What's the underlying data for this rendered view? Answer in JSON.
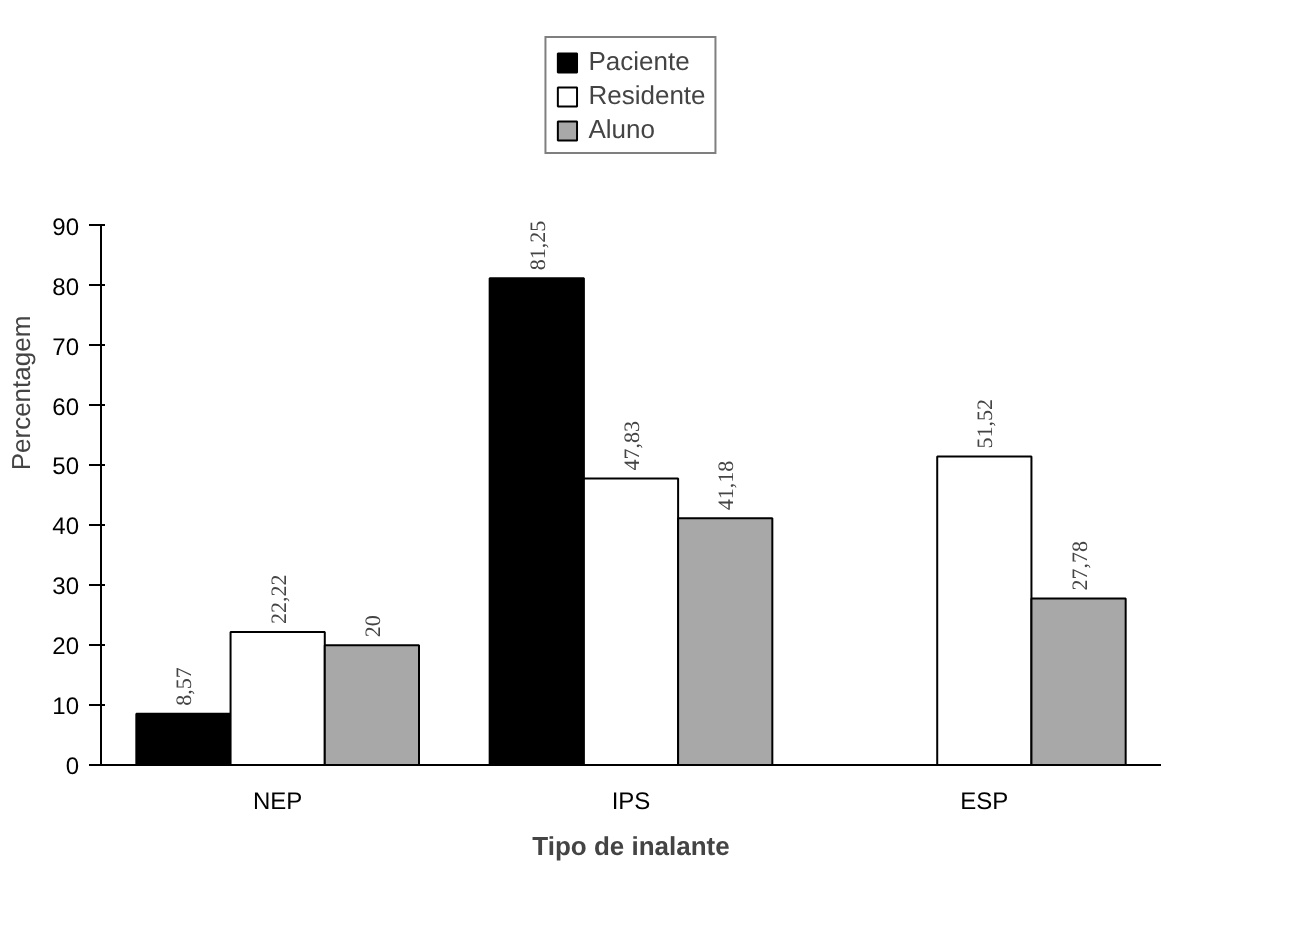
{
  "chart_data": {
    "type": "bar",
    "xlabel": "Tipo de inalante",
    "ylabel": "Percentagem",
    "categories": [
      "NEP",
      "IPS",
      "ESP"
    ],
    "series": [
      {
        "name": "Paciente",
        "color": "#000000",
        "values": [
          8.57,
          81.25,
          null
        ],
        "value_labels": [
          "8,57",
          "81,25",
          null
        ]
      },
      {
        "name": "Residente",
        "color": "#ffffff",
        "values": [
          22.22,
          47.83,
          51.52
        ],
        "value_labels": [
          "22,22",
          "47,83",
          "51,52"
        ]
      },
      {
        "name": "Aluno",
        "color": "#a8a8a8",
        "values": [
          20,
          41.18,
          27.78
        ],
        "value_labels": [
          "20",
          "41,18",
          "27,78"
        ]
      }
    ],
    "ylim": [
      0,
      90
    ],
    "yticks": [
      0,
      10,
      20,
      30,
      40,
      50,
      60,
      70,
      80,
      90
    ],
    "grid": false,
    "legend": "top"
  }
}
